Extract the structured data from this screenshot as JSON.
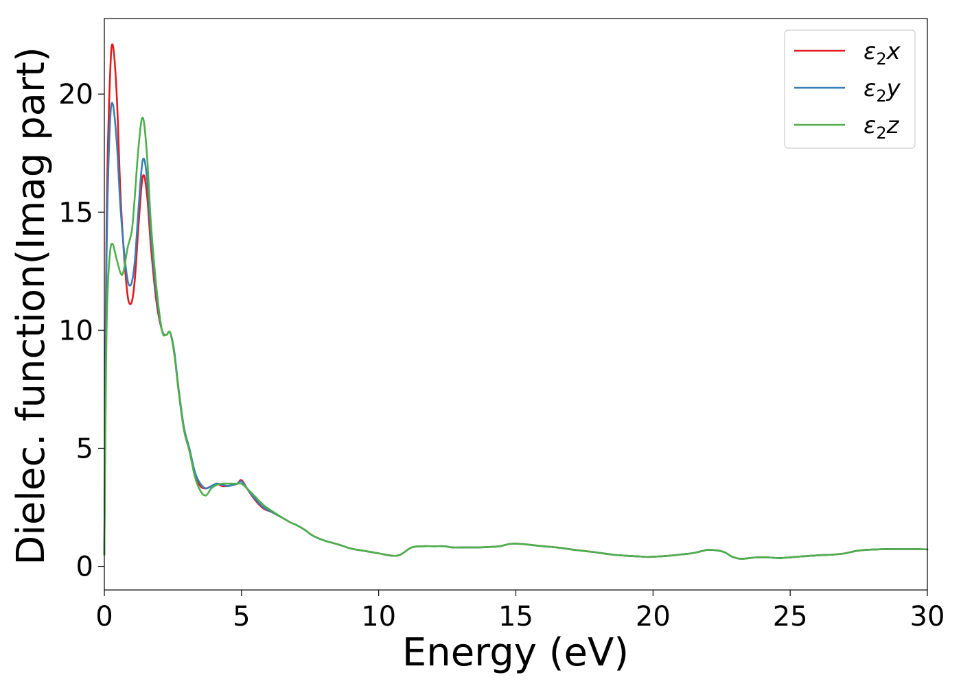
{
  "chart_data": {
    "type": "line",
    "title": "",
    "xlabel": "Energy (eV)",
    "ylabel": "Dielec. function(Imag part)",
    "xlim": [
      0,
      30
    ],
    "ylim": [
      -1.0,
      23.2
    ],
    "xticks": [
      0,
      5,
      10,
      15,
      20,
      25,
      30
    ],
    "yticks": [
      0,
      5,
      10,
      15,
      20
    ],
    "grid": false,
    "legend_position": "top-right",
    "series": [
      {
        "name": "ε₂x",
        "legend_base": "ε",
        "legend_sub": "2",
        "legend_var": "x",
        "color": "#e41a1c",
        "x": [
          0,
          0.05,
          0.1,
          0.2,
          0.3,
          0.45,
          0.6,
          0.8,
          0.95,
          1.1,
          1.25,
          1.4,
          1.55,
          1.7,
          1.9,
          2.1,
          2.25,
          2.4,
          2.55,
          2.7,
          2.9,
          3.1,
          3.3,
          3.5,
          3.7,
          3.9,
          4.1,
          4.3,
          4.5,
          4.7,
          4.85,
          5.0,
          5.2,
          5.5,
          5.8,
          6.1,
          6.5,
          6.8,
          7.0,
          7.3,
          7.6,
          8.0,
          8.3,
          8.6,
          9.0,
          9.5,
          10.0,
          10.5,
          10.8,
          11.2,
          11.6,
          12.0,
          12.4,
          12.7,
          13.2,
          13.6,
          14.0,
          14.4,
          14.8,
          15.2,
          15.6,
          16.0,
          16.5,
          17.0,
          17.5,
          18.0,
          18.5,
          19.0,
          19.5,
          19.8,
          20.2,
          20.6,
          21.0,
          21.4,
          21.8,
          22.0,
          22.3,
          22.6,
          22.9,
          23.2,
          23.5,
          23.8,
          24.2,
          24.6,
          25.0,
          25.4,
          25.8,
          26.2,
          26.6,
          27.0,
          27.4,
          27.8,
          28.2,
          28.6,
          29.0,
          29.5,
          30.0
        ],
        "y": [
          0.5,
          10.0,
          16.0,
          20.5,
          22.1,
          20.0,
          15.5,
          12.0,
          11.1,
          12.0,
          14.5,
          16.5,
          15.8,
          13.5,
          11.2,
          10.0,
          9.8,
          9.9,
          9.0,
          7.5,
          5.8,
          4.9,
          3.9,
          3.4,
          3.3,
          3.4,
          3.5,
          3.4,
          3.4,
          3.45,
          3.5,
          3.65,
          3.3,
          2.8,
          2.45,
          2.3,
          2.05,
          1.85,
          1.75,
          1.55,
          1.3,
          1.1,
          1.0,
          0.9,
          0.75,
          0.65,
          0.55,
          0.45,
          0.5,
          0.8,
          0.85,
          0.85,
          0.85,
          0.8,
          0.8,
          0.8,
          0.82,
          0.85,
          0.95,
          0.95,
          0.9,
          0.85,
          0.8,
          0.72,
          0.65,
          0.58,
          0.5,
          0.45,
          0.42,
          0.4,
          0.42,
          0.45,
          0.5,
          0.55,
          0.65,
          0.7,
          0.68,
          0.6,
          0.4,
          0.32,
          0.35,
          0.38,
          0.38,
          0.35,
          0.38,
          0.42,
          0.45,
          0.48,
          0.5,
          0.55,
          0.65,
          0.7,
          0.72,
          0.73,
          0.73,
          0.73,
          0.72
        ]
      },
      {
        "name": "ε₂y",
        "legend_base": "ε",
        "legend_sub": "2",
        "legend_var": "y",
        "color": "#377eb8",
        "x": [
          0,
          0.05,
          0.1,
          0.2,
          0.3,
          0.45,
          0.6,
          0.8,
          0.95,
          1.1,
          1.25,
          1.4,
          1.55,
          1.7,
          1.9,
          2.1,
          2.25,
          2.4,
          2.55,
          2.7,
          2.9,
          3.1,
          3.3,
          3.5,
          3.7,
          3.9,
          4.1,
          4.3,
          4.5,
          4.7,
          4.85,
          5.0,
          5.2,
          5.5,
          5.8,
          6.1,
          6.5,
          6.8,
          7.0,
          7.3,
          7.6,
          8.0,
          8.3,
          8.6,
          9.0,
          9.5,
          10.0,
          10.5,
          10.8,
          11.2,
          11.6,
          12.0,
          12.4,
          12.7,
          13.2,
          13.6,
          14.0,
          14.4,
          14.8,
          15.2,
          15.6,
          16.0,
          16.5,
          17.0,
          17.5,
          18.0,
          18.5,
          19.0,
          19.5,
          19.8,
          20.2,
          20.6,
          21.0,
          21.4,
          21.8,
          22.0,
          22.3,
          22.6,
          22.9,
          23.2,
          23.5,
          23.8,
          24.2,
          24.6,
          25.0,
          25.4,
          25.8,
          26.2,
          26.6,
          27.0,
          27.4,
          27.8,
          28.2,
          28.6,
          29.0,
          29.5,
          30.0
        ],
        "y": [
          0.5,
          9.0,
          14.5,
          18.6,
          19.6,
          18.0,
          15.0,
          12.5,
          11.9,
          12.8,
          15.2,
          17.2,
          16.5,
          14.0,
          11.5,
          10.0,
          9.8,
          9.9,
          9.1,
          7.6,
          5.9,
          5.0,
          4.0,
          3.5,
          3.3,
          3.4,
          3.5,
          3.45,
          3.4,
          3.45,
          3.5,
          3.6,
          3.3,
          2.85,
          2.5,
          2.3,
          2.05,
          1.85,
          1.75,
          1.55,
          1.3,
          1.1,
          1.0,
          0.9,
          0.75,
          0.65,
          0.55,
          0.45,
          0.5,
          0.8,
          0.85,
          0.85,
          0.85,
          0.8,
          0.8,
          0.8,
          0.82,
          0.85,
          0.95,
          0.95,
          0.9,
          0.85,
          0.8,
          0.72,
          0.65,
          0.58,
          0.5,
          0.45,
          0.42,
          0.4,
          0.42,
          0.45,
          0.5,
          0.55,
          0.65,
          0.7,
          0.68,
          0.6,
          0.4,
          0.32,
          0.35,
          0.38,
          0.38,
          0.35,
          0.38,
          0.42,
          0.45,
          0.48,
          0.5,
          0.55,
          0.65,
          0.7,
          0.72,
          0.73,
          0.73,
          0.73,
          0.72
        ]
      },
      {
        "name": "ε₂z",
        "legend_base": "ε",
        "legend_sub": "2",
        "legend_var": "z",
        "color": "#4daf4a",
        "x": [
          0,
          0.05,
          0.1,
          0.2,
          0.3,
          0.45,
          0.6,
          0.7,
          0.85,
          1.0,
          1.1,
          1.25,
          1.4,
          1.55,
          1.7,
          1.9,
          2.1,
          2.25,
          2.4,
          2.55,
          2.7,
          2.9,
          3.1,
          3.3,
          3.5,
          3.7,
          3.9,
          4.1,
          4.3,
          4.5,
          4.7,
          4.85,
          5.0,
          5.2,
          5.5,
          5.8,
          6.1,
          6.5,
          6.8,
          7.0,
          7.3,
          7.6,
          8.0,
          8.3,
          8.6,
          9.0,
          9.5,
          10.0,
          10.5,
          10.8,
          11.2,
          11.6,
          12.0,
          12.4,
          12.7,
          13.2,
          13.6,
          14.0,
          14.4,
          14.8,
          15.2,
          15.6,
          16.0,
          16.5,
          17.0,
          17.5,
          18.0,
          18.5,
          19.0,
          19.5,
          19.8,
          20.2,
          20.6,
          21.0,
          21.4,
          21.8,
          22.0,
          22.3,
          22.6,
          22.9,
          23.2,
          23.5,
          23.8,
          24.2,
          24.6,
          25.0,
          25.4,
          25.8,
          26.2,
          26.6,
          27.0,
          27.4,
          27.8,
          28.2,
          28.6,
          29.0,
          29.5,
          30.0
        ],
        "y": [
          0.5,
          7.0,
          11.0,
          13.2,
          13.65,
          13.0,
          12.4,
          12.5,
          13.5,
          14.2,
          15.5,
          17.8,
          19.0,
          17.5,
          14.5,
          11.8,
          10.0,
          9.8,
          9.9,
          9.0,
          7.5,
          5.8,
          4.9,
          3.8,
          3.2,
          3.0,
          3.3,
          3.45,
          3.5,
          3.5,
          3.5,
          3.5,
          3.5,
          3.3,
          2.95,
          2.6,
          2.35,
          2.05,
          1.85,
          1.75,
          1.55,
          1.3,
          1.1,
          1.0,
          0.9,
          0.75,
          0.65,
          0.55,
          0.45,
          0.5,
          0.8,
          0.85,
          0.85,
          0.85,
          0.8,
          0.8,
          0.8,
          0.82,
          0.85,
          0.95,
          0.95,
          0.9,
          0.85,
          0.8,
          0.72,
          0.65,
          0.58,
          0.5,
          0.45,
          0.42,
          0.4,
          0.42,
          0.45,
          0.5,
          0.55,
          0.65,
          0.7,
          0.68,
          0.6,
          0.4,
          0.32,
          0.35,
          0.38,
          0.38,
          0.35,
          0.38,
          0.42,
          0.45,
          0.48,
          0.5,
          0.55,
          0.65,
          0.7,
          0.72,
          0.73,
          0.73,
          0.73,
          0.72
        ]
      }
    ]
  }
}
